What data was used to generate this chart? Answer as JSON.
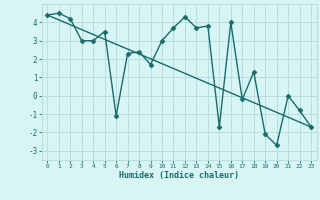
{
  "xlabel": "Humidex (Indice chaleur)",
  "x_values": [
    0,
    1,
    2,
    3,
    4,
    5,
    6,
    7,
    8,
    9,
    10,
    11,
    12,
    13,
    14,
    15,
    16,
    17,
    18,
    19,
    20,
    21,
    22,
    23
  ],
  "y_values": [
    4.4,
    4.5,
    4.2,
    3.0,
    3.0,
    3.5,
    -1.1,
    2.3,
    2.4,
    1.7,
    3.0,
    3.7,
    4.3,
    3.7,
    3.8,
    -1.7,
    4.0,
    -0.2,
    1.3,
    -2.1,
    -2.7,
    0.0,
    -0.8,
    -1.7
  ],
  "trend_x": [
    0,
    23
  ],
  "trend_y": [
    4.4,
    -1.7
  ],
  "line_color": "#1a6b6b",
  "bg_color": "#d8f5f5",
  "grid_color": "#b8dede",
  "ylim": [
    -3.5,
    5.0
  ],
  "xlim": [
    -0.5,
    23.5
  ],
  "yticks": [
    -3,
    -2,
    -1,
    0,
    1,
    2,
    3,
    4
  ],
  "xticks": [
    0,
    1,
    2,
    3,
    4,
    5,
    6,
    7,
    8,
    9,
    10,
    11,
    12,
    13,
    14,
    15,
    16,
    17,
    18,
    19,
    20,
    21,
    22,
    23
  ],
  "marker": "D",
  "markersize": 2.5,
  "linewidth": 1.0
}
